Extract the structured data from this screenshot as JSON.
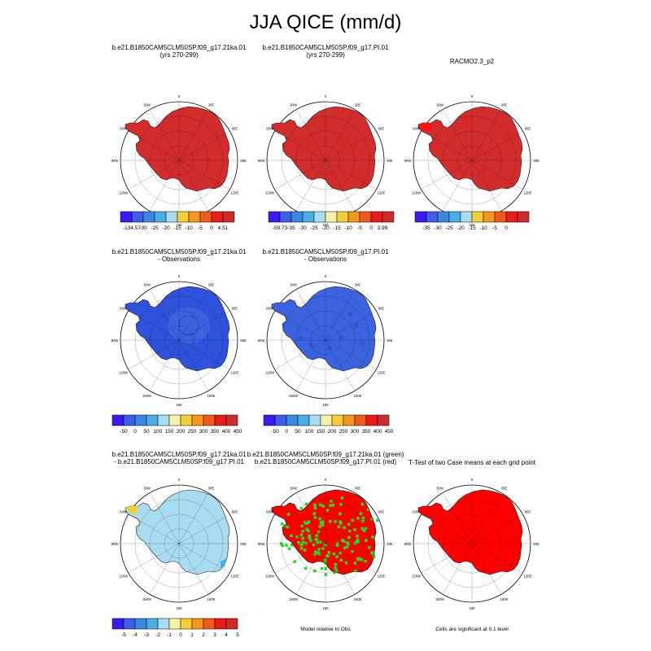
{
  "figure": {
    "title": "JJA QICE (mm/d)"
  },
  "lon_labels": [
    "0",
    "30E",
    "60E",
    "90E",
    "120E",
    "150E",
    "180",
    "150W",
    "120W",
    "90W",
    "60W",
    "30W"
  ],
  "colors": {
    "palette_11": [
      "#3a1af0",
      "#3c5ee8",
      "#3b88e4",
      "#48afe6",
      "#a9dcf0",
      "#f6f1a8",
      "#f5cd35",
      "#f5971c",
      "#f25a1b",
      "#e81d19",
      "#cf2a2a"
    ],
    "palette_10": [
      "#3a1af0",
      "#3c5ee8",
      "#3b88e4",
      "#48afe6",
      "#a9dcf0",
      "#f5cd35",
      "#f5971c",
      "#f25a1b",
      "#e81d19",
      "#cf2a2a"
    ],
    "model_fill": "#d22c2c",
    "obs_fill": "#2f52dc",
    "obs_fill_2": "#3b63e0",
    "diff_fill": "#a9dcf0",
    "sig_green": "#22e022",
    "sig_red": "#ff0000"
  },
  "chart_data": [
    {
      "type": "heatmap",
      "title_line1": "b.e21.B1850CAM5CLM50SP.f09_g17.21ka.01",
      "title_line2": "(yrs 270-299)",
      "colorbar_labels": [
        "-134.57",
        "-30",
        "-25",
        "-20",
        "-15",
        "-10",
        "-5",
        "0",
        "4.51"
      ],
      "dominant_color": "#d22c2c"
    },
    {
      "type": "heatmap",
      "title_line1": "b.e21.B1850CAM5CLM50SP.f09_g17.PI.01",
      "title_line2": "(yrs 270-299)",
      "colorbar_labels": [
        "-59.73",
        "-35",
        "-30",
        "-25",
        "-20",
        "-15",
        "-10",
        "-5",
        "0",
        "3.99"
      ],
      "dominant_color": "#d22c2c"
    },
    {
      "type": "heatmap",
      "title_line1": "RACMO2.3_p2",
      "title_line2": "",
      "colorbar_labels": [
        "-35",
        "-30",
        "-25",
        "-20",
        "-15",
        "-10",
        "-5",
        "0"
      ],
      "dominant_color": "#d22c2c"
    },
    {
      "type": "heatmap",
      "title_line1": "b.e21.B1850CAM5CLM50SP.f09_g17.21ka.01",
      "title_line2": "- Observations",
      "colorbar_labels": [
        "-50",
        "0",
        "50",
        "100",
        "150",
        "200",
        "250",
        "300",
        "350",
        "400",
        "450"
      ],
      "dominant_color": "#2f52dc"
    },
    {
      "type": "heatmap",
      "title_line1": "b.e21.B1850CAM5CLM50SP.f09_g17.PI.01",
      "title_line2": "- Observations",
      "colorbar_labels": [
        "-50",
        "0",
        "50",
        "100",
        "150",
        "200",
        "250",
        "300",
        "350",
        "400",
        "450"
      ],
      "dominant_color": "#3b63e0"
    },
    {
      "type": "heatmap",
      "title_line1": "b.e21.B1850CAM5CLM50SP.f09_g17.21ka.01",
      "title_line2": "- b.e21.B1850CAM5CLM50SP.f09_g17.PI.01",
      "colorbar_labels": [
        "-5",
        "-4",
        "-3",
        "-2",
        "-1",
        "0",
        "1",
        "2",
        "3",
        "4",
        "5"
      ],
      "dominant_color": "#a9dcf0"
    },
    {
      "type": "heatmap",
      "title_line1": "b.e21.B1850CAM5CLM50SP.f09_g17.21ka.01 (green)",
      "title_line2": "b.e21.B1850CAM5CLM50SP.f09_g17.PI.01 (red)",
      "note": "Model relative to Obs",
      "dominant_color": "#ff0000"
    },
    {
      "type": "heatmap",
      "title_line1": "T-Test of two Case means at each grid point",
      "title_line2": "",
      "note": "Cells are significant at 0.1 level",
      "dominant_color": "#ff0000"
    }
  ]
}
